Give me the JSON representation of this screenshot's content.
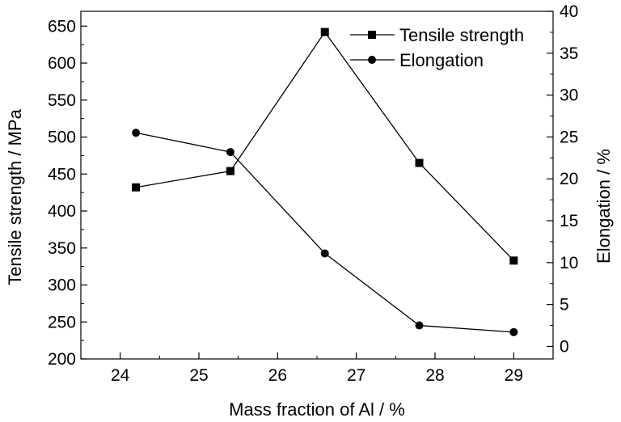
{
  "chart_data": {
    "type": "line",
    "title": "",
    "xlabel": "Mass fraction of Al / %",
    "ylabel_left": "Tensile strength / MPa",
    "ylabel_right": "Elongation / %",
    "x": [
      24.2,
      25.4,
      26.6,
      27.8,
      29.0
    ],
    "xlim": [
      23.5,
      29.5
    ],
    "ylim_left": [
      200,
      670
    ],
    "ylim_right": [
      -1.5,
      40
    ],
    "x_ticks": [
      "24",
      "25",
      "26",
      "27",
      "28",
      "29"
    ],
    "y_ticks_left": [
      "200",
      "250",
      "300",
      "350",
      "400",
      "450",
      "500",
      "550",
      "600",
      "650"
    ],
    "y_ticks_right": [
      "0",
      "5",
      "10",
      "15",
      "20",
      "25",
      "30",
      "35",
      "40"
    ],
    "grid": false,
    "legend_position": "top-right",
    "series": [
      {
        "name": "Tensile strength",
        "axis": "left",
        "marker": "square",
        "values": [
          432,
          454,
          642,
          465,
          333
        ]
      },
      {
        "name": "Elongation",
        "axis": "right",
        "marker": "circle",
        "values": [
          25.5,
          23.2,
          11.1,
          2.5,
          1.7
        ]
      }
    ]
  }
}
